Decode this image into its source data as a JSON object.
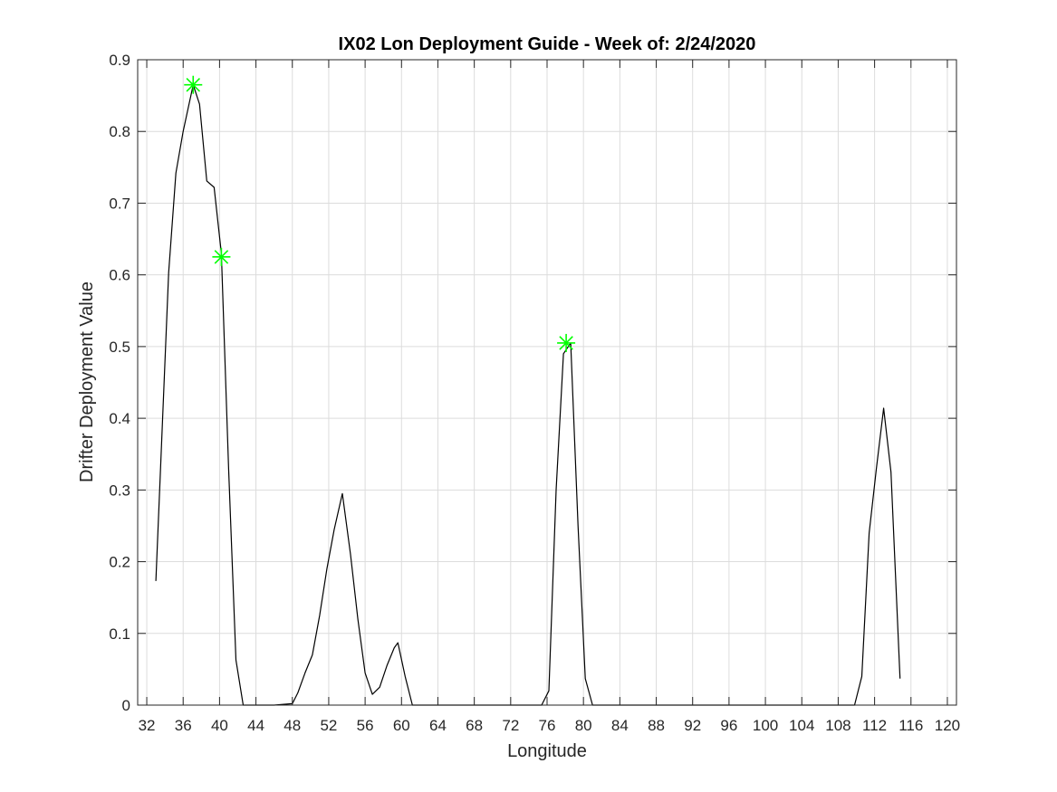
{
  "chart_data": {
    "type": "line",
    "title": "IX02 Lon Deployment Guide - Week of: 2/24/2020",
    "xlabel": "Longitude",
    "ylabel": "Drifter Deployment Value",
    "xlim": [
      31,
      121
    ],
    "ylim": [
      0,
      0.9
    ],
    "xticks": [
      32,
      36,
      40,
      44,
      48,
      52,
      56,
      60,
      64,
      68,
      72,
      76,
      80,
      84,
      88,
      92,
      96,
      100,
      104,
      108,
      112,
      116,
      120
    ],
    "yticks": [
      0,
      0.1,
      0.2,
      0.3,
      0.4,
      0.5,
      0.6,
      0.7,
      0.8,
      0.9
    ],
    "grid": true,
    "series": [
      {
        "line_color": "#000000",
        "x": [
          33,
          34.4,
          35.2,
          36,
          37.1,
          37.8,
          38.6,
          39.4,
          40.2,
          41.0,
          41.8,
          42.6,
          43.4,
          46.0,
          48.0,
          48.6,
          49.4,
          50.2,
          51.0,
          51.8,
          52.6,
          53.5,
          54.4,
          55.2,
          56.0,
          56.8,
          57.6,
          58.4,
          59.2,
          59.6,
          60.4,
          61.2,
          62.0,
          74.0,
          75.4,
          76.2,
          77.0,
          77.8,
          78.6,
          79.4,
          80.2,
          81.0,
          100.0,
          109.0,
          109.8,
          110.6,
          111.4,
          112.2,
          113.0,
          113.8,
          114.8
        ],
        "y": [
          0.173,
          0.603,
          0.742,
          0.8,
          0.865,
          0.838,
          0.731,
          0.722,
          0.63,
          0.33,
          0.063,
          0.0,
          0.0,
          0.0,
          0.002,
          0.017,
          0.045,
          0.07,
          0.125,
          0.19,
          0.245,
          0.295,
          0.21,
          0.12,
          0.045,
          0.015,
          0.025,
          0.055,
          0.08,
          0.087,
          0.04,
          0.0,
          0.0,
          0.0,
          0.0,
          0.02,
          0.3,
          0.49,
          0.505,
          0.25,
          0.037,
          0.0,
          0.0,
          0.0,
          0.0,
          0.04,
          0.24,
          0.33,
          0.414,
          0.325,
          0.037
        ]
      }
    ],
    "markers": {
      "symbol": "asterisk",
      "color": "#00ff00",
      "points": [
        {
          "x": 37.1,
          "y": 0.865
        },
        {
          "x": 40.2,
          "y": 0.625
        },
        {
          "x": 78.1,
          "y": 0.505
        }
      ]
    }
  }
}
